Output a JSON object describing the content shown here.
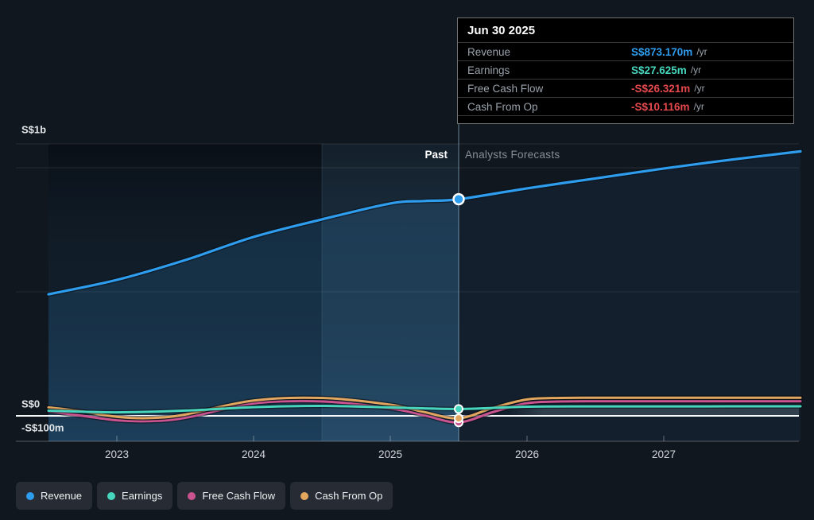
{
  "page": {
    "background": "#11171f"
  },
  "tooltip": {
    "date": "Jun 30 2025",
    "rows": [
      {
        "label": "Revenue",
        "value": "S$873.170m",
        "unit": "/yr",
        "color": "#2f9ded"
      },
      {
        "label": "Earnings",
        "value": "S$27.625m",
        "unit": "/yr",
        "color": "#47d6bd"
      },
      {
        "label": "Free Cash Flow",
        "value": "-S$26.321m",
        "unit": "/yr",
        "color": "#e5484d"
      },
      {
        "label": "Cash From Op",
        "value": "-S$10.116m",
        "unit": "/yr",
        "color": "#e5484d"
      }
    ]
  },
  "regions": {
    "past_label": "Past",
    "forecast_label": "Analysts Forecasts"
  },
  "axis": {
    "y_ticks": [
      "S$1b",
      "S$0",
      "-S$100m"
    ],
    "x_ticks": [
      "2023",
      "2024",
      "2025",
      "2026",
      "2027"
    ]
  },
  "legend": {
    "items": [
      {
        "label": "Revenue",
        "color": "#2f9ded"
      },
      {
        "label": "Earnings",
        "color": "#47d6bd"
      },
      {
        "label": "Free Cash Flow",
        "color": "#cb5390"
      },
      {
        "label": "Cash From Op",
        "color": "#e2a65e"
      }
    ]
  },
  "chart_data": {
    "type": "line",
    "currency": "S$",
    "unit": "millions",
    "x_range": [
      2022.5,
      2028.0
    ],
    "y_range_m": [
      -103,
      1096
    ],
    "divider_x": 2025.5,
    "grid": {
      "labeled_y_m": [
        1000,
        0,
        -100
      ],
      "unlabeled_y_m": [
        500
      ]
    },
    "legend_position": "bottom-left",
    "series": [
      {
        "name": "Revenue",
        "color": "#2f9ded",
        "area": true,
        "points": [
          [
            2022.5,
            490
          ],
          [
            2023,
            548
          ],
          [
            2023.5,
            628
          ],
          [
            2024,
            721
          ],
          [
            2024.5,
            792
          ],
          [
            2025,
            856
          ],
          [
            2025.25,
            866
          ],
          [
            2025.5,
            873.17
          ],
          [
            2026,
            917
          ],
          [
            2026.5,
            957
          ],
          [
            2027,
            997
          ],
          [
            2027.5,
            1033
          ],
          [
            2028,
            1066
          ]
        ]
      },
      {
        "name": "Earnings",
        "color": "#47d6bd",
        "points": [
          [
            2022.5,
            21
          ],
          [
            2023,
            14
          ],
          [
            2023.5,
            21
          ],
          [
            2024,
            35
          ],
          [
            2024.5,
            40
          ],
          [
            2025,
            34
          ],
          [
            2025.5,
            27.625
          ],
          [
            2026,
            37
          ],
          [
            2026.5,
            38
          ],
          [
            2027,
            38
          ],
          [
            2028,
            38.5
          ]
        ]
      },
      {
        "name": "Free Cash Flow",
        "color": "#cb5390",
        "points": [
          [
            2022.5,
            18
          ],
          [
            2022.75,
            0
          ],
          [
            2023,
            -18
          ],
          [
            2023.25,
            -21
          ],
          [
            2023.5,
            -8
          ],
          [
            2024,
            50
          ],
          [
            2024.5,
            58
          ],
          [
            2025,
            30
          ],
          [
            2025.25,
            2
          ],
          [
            2025.5,
            -26.321
          ],
          [
            2025.75,
            15
          ],
          [
            2026,
            51
          ],
          [
            2026.25,
            58
          ],
          [
            2026.5,
            59
          ],
          [
            2027,
            59
          ],
          [
            2028,
            59
          ]
        ]
      },
      {
        "name": "Cash From Op",
        "color": "#e2a65e",
        "points": [
          [
            2022.5,
            34
          ],
          [
            2022.75,
            18
          ],
          [
            2023,
            -4
          ],
          [
            2023.25,
            -9
          ],
          [
            2023.5,
            5
          ],
          [
            2024,
            62
          ],
          [
            2024.5,
            72
          ],
          [
            2025,
            45
          ],
          [
            2025.25,
            15
          ],
          [
            2025.5,
            -10.116
          ],
          [
            2025.75,
            32
          ],
          [
            2026,
            66
          ],
          [
            2026.25,
            72
          ],
          [
            2026.5,
            73
          ],
          [
            2027,
            73
          ],
          [
            2028,
            73
          ]
        ]
      }
    ],
    "highlight": {
      "date": "Jun 30 2025",
      "x": 2025.5,
      "values_m": {
        "Revenue": 873.17,
        "Earnings": 27.625,
        "Free Cash Flow": -26.321,
        "Cash From Op": -10.116
      }
    }
  }
}
